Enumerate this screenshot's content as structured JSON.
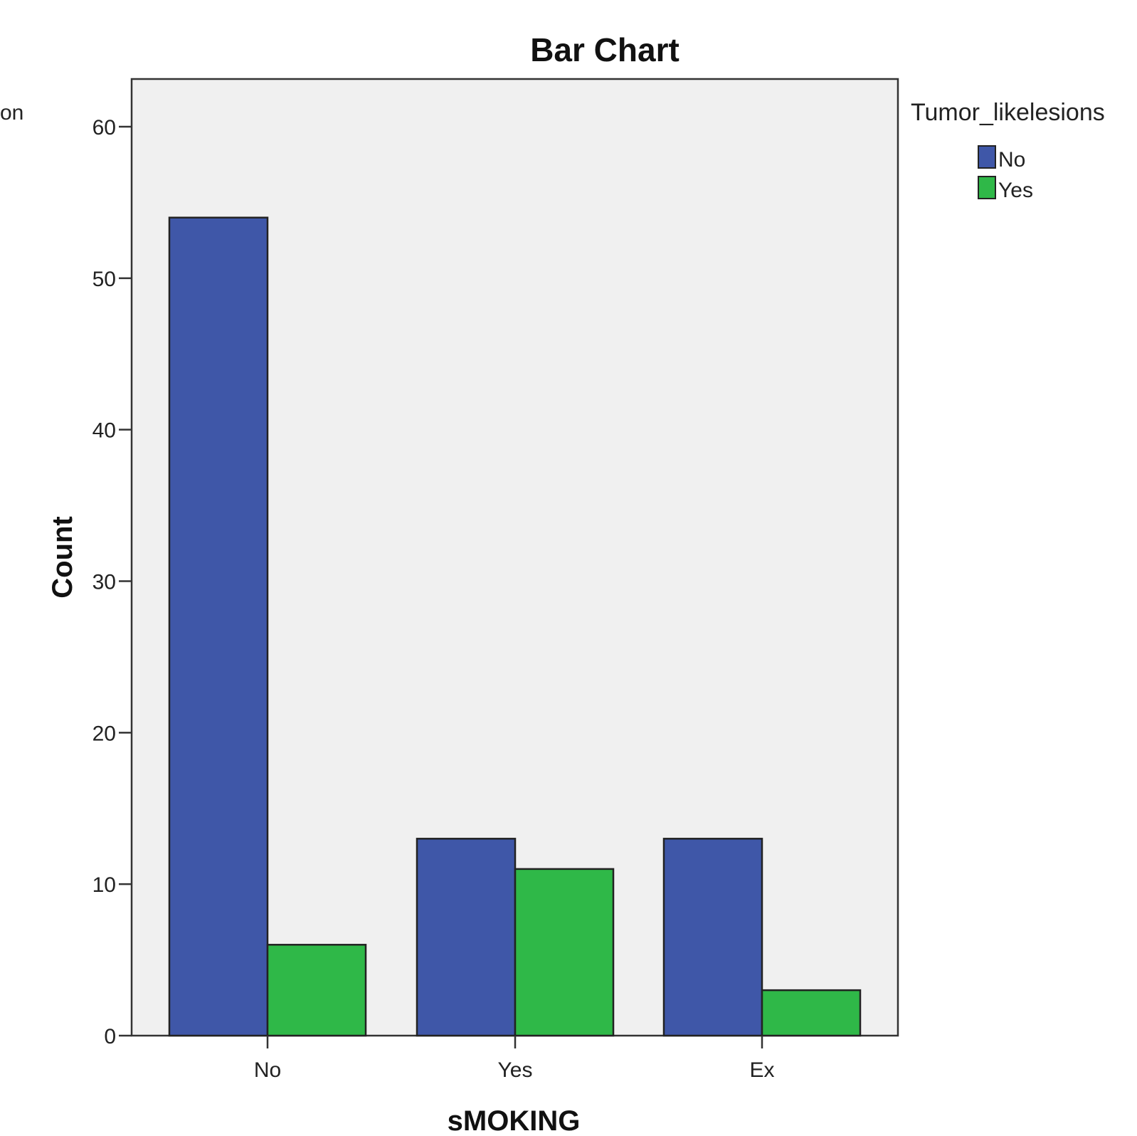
{
  "edge_fragment": "on",
  "chart_data": {
    "type": "bar",
    "title": "Bar Chart",
    "xlabel": "sMOKING",
    "ylabel": "Count",
    "categories": [
      "No",
      "Yes",
      "Ex"
    ],
    "series": [
      {
        "name": "No",
        "values": [
          54,
          13,
          13
        ],
        "color": "#3f57a8"
      },
      {
        "name": "Yes",
        "values": [
          6,
          11,
          3
        ],
        "color": "#2fb848"
      }
    ],
    "ylim": [
      0,
      63
    ],
    "yticks": [
      0,
      10,
      20,
      30,
      40,
      50,
      60
    ],
    "grid": false,
    "legend": {
      "title": "Tumor_likelesions",
      "position": "right"
    },
    "plot_background": "#f0f0f0"
  }
}
